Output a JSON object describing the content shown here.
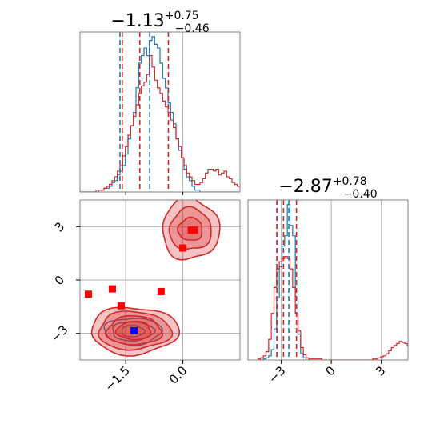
{
  "chart_data": {
    "type": "corner",
    "title": "",
    "parameters": [
      "",
      ""
    ],
    "colors": {
      "blue_series": "#1f77b4",
      "red_series": "#d62728",
      "marker_red": "#ff0000",
      "marker_blue": "#0000ff",
      "grid": "#b0b0b0"
    },
    "panels": [
      {
        "id": "marginal-param-1",
        "type": "histogram-step",
        "title": {
          "main": "−1.13",
          "sup": "+0.75",
          "sub": "−0.46"
        },
        "xlim": [
          -2.7,
          1.5
        ],
        "series": [
          {
            "name": "",
            "color": "#1f77b4",
            "bin_start": -2.7,
            "bin_width": 0.07,
            "counts": [
              0,
              0,
              0,
              0,
              0,
              0,
              1,
              1,
              1,
              2,
              2,
              3,
              5,
              6,
              9,
              11,
              14,
              20,
              28,
              35,
              42,
              55,
              68,
              72,
              76,
              72,
              80,
              82,
              78,
              76,
              68,
              60,
              55,
              47,
              42,
              36,
              28,
              22,
              18,
              12,
              8,
              6,
              3,
              1,
              1,
              0,
              0,
              0,
              0,
              0,
              0,
              0,
              0,
              0,
              0,
              0,
              0,
              0,
              0,
              0,
              0
            ]
          },
          {
            "name": "",
            "color": "#d62728",
            "bin_start": -2.7,
            "bin_width": 0.07,
            "counts": [
              0,
              0,
              0,
              0,
              0,
              0,
              0,
              1,
              1,
              2,
              3,
              4,
              6,
              8,
              11,
              14,
              19,
              24,
              30,
              35,
              40,
              46,
              52,
              56,
              58,
              62,
              72,
              66,
              59,
              55,
              52,
              48,
              45,
              42,
              38,
              34,
              28,
              24,
              18,
              14,
              10,
              8,
              6,
              4,
              4,
              5,
              7,
              10,
              12,
              12,
              11,
              12,
              9,
              10,
              11,
              8,
              7,
              5,
              4,
              3,
              2
            ]
          }
        ],
        "quantile_lines": [
          {
            "color": "#1f77b4",
            "x": [
              -1.65,
              -0.87
            ]
          },
          {
            "color": "#d62728",
            "x": [
              -1.59,
              -1.13,
              -0.38
            ]
          }
        ],
        "reference_line_x": 0.0
      },
      {
        "id": "joint-param-1-param-2",
        "type": "contour",
        "xlim": [
          -2.7,
          1.5
        ],
        "ylim": [
          -4.5,
          4.5
        ],
        "xticks": [
          -1.5,
          0.0
        ],
        "xtick_labels": [
          "−1.5",
          "0.0"
        ],
        "yticks": [
          -3,
          0,
          3
        ],
        "ytick_labels": [
          "−3",
          "0",
          "3"
        ],
        "reference_lines": {
          "x": [
            -1.5,
            0.0
          ],
          "y": [
            -3,
            0,
            3
          ]
        },
        "contours": [
          {
            "name": "",
            "color": "#1f77b4",
            "center": [
              -1.32,
              -2.88
            ],
            "levels": [
              [
                0.75,
                0.35
              ],
              [
                0.55,
                0.25
              ],
              [
                0.3,
                0.15
              ]
            ]
          },
          {
            "name": "",
            "color": "#d62728",
            "center": [
              -1.28,
              -2.85
            ],
            "levels": [
              [
                1.15,
                0.62
              ],
              [
                0.95,
                0.5
              ],
              [
                0.72,
                0.38
              ],
              [
                0.45,
                0.24
              ]
            ]
          },
          {
            "name": "",
            "color": "#d62728",
            "center": [
              0.2,
              2.85
            ],
            "levels": [
              [
                0.75,
                0.8
              ],
              [
                0.55,
                0.55
              ],
              [
                0.32,
                0.3
              ]
            ]
          }
        ],
        "markers": [
          {
            "x": -2.48,
            "y": -0.8,
            "color": "#ff0000"
          },
          {
            "x": -1.85,
            "y": -0.5,
            "color": "#ff0000"
          },
          {
            "x": -1.62,
            "y": -1.45,
            "color": "#ff0000"
          },
          {
            "x": -0.57,
            "y": -0.65,
            "color": "#ff0000"
          },
          {
            "x": 0.0,
            "y": 1.8,
            "color": "#ff0000"
          },
          {
            "x": 0.22,
            "y": 2.8,
            "color": "#ff0000"
          },
          {
            "x": 0.3,
            "y": 2.8,
            "color": "#ff0000"
          },
          {
            "x": -1.28,
            "y": -2.85,
            "color": "#0000ff"
          }
        ]
      },
      {
        "id": "marginal-param-2",
        "type": "histogram-step",
        "title": {
          "main": "−2.87",
          "sup": "+0.78",
          "sub": "−0.40"
        },
        "xlim": [
          -5.0,
          4.6
        ],
        "xticks": [
          -3,
          0,
          3
        ],
        "xtick_labels": [
          "−3",
          "0",
          "3"
        ],
        "series": [
          {
            "name": "",
            "color": "#1f77b4",
            "bin_start": -4.4,
            "bin_width": 0.16,
            "counts": [
              0,
              0,
              1,
              2,
              4,
              10,
              30,
              60,
              90,
              110,
              120,
              150,
              130,
              120,
              60,
              25,
              6,
              2,
              0,
              0
            ]
          },
          {
            "name": "",
            "color": "#d62728",
            "bin_start": -4.4,
            "bin_width": 0.16,
            "counts": [
              1,
              2,
              4,
              8,
              20,
              45,
              70,
              88,
              95,
              98,
              100,
              98,
              88,
              70,
              45,
              28,
              12,
              5,
              2,
              1,
              1,
              1,
              1,
              1,
              0,
              0,
              0,
              0,
              0,
              0,
              0,
              0,
              0,
              0,
              0,
              0,
              0,
              0,
              0,
              0,
              0,
              0,
              0,
              1,
              1,
              2,
              3,
              4,
              6,
              9,
              12,
              14,
              16,
              18,
              17,
              16,
              14,
              12,
              10,
              8,
              6,
              4,
              3,
              2,
              1,
              0
            ]
          }
        ],
        "quantile_lines": [
          {
            "color": "#1f77b4",
            "x": [
              -3.25,
              -2.55
            ]
          },
          {
            "color": "#d62728",
            "x": [
              -3.27,
              -2.87,
              -2.09
            ]
          }
        ],
        "reference_lines_x": [
          -3,
          0,
          3
        ]
      }
    ]
  }
}
